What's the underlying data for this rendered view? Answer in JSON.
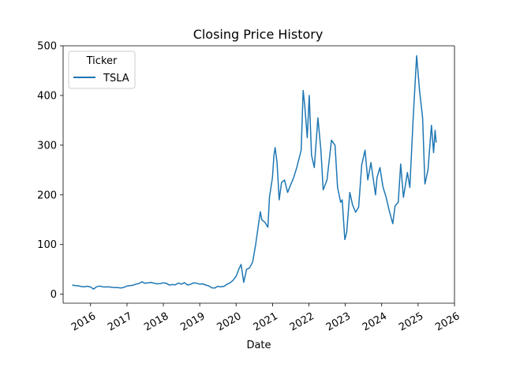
{
  "chart_data": {
    "type": "line",
    "title": "Closing Price History",
    "xlabel": "Date",
    "ylabel": "",
    "xlim": [
      "2015-04-01",
      "2026-01-01"
    ],
    "ylim": [
      -18,
      500
    ],
    "x_ticks": [
      "2016",
      "2017",
      "2018",
      "2019",
      "2020",
      "2021",
      "2022",
      "2023",
      "2024",
      "2025",
      "2026"
    ],
    "y_ticks": [
      0,
      100,
      200,
      300,
      400,
      500
    ],
    "grid": false,
    "legend": {
      "title": "Ticker",
      "location": "upper-left"
    },
    "colors": {
      "series": "#1f77b4",
      "axis": "#000000"
    },
    "series": [
      {
        "name": "TSLA",
        "points": [
          [
            "2015-07-01",
            18.5
          ],
          [
            "2015-08-01",
            17.5
          ],
          [
            "2015-09-01",
            17.0
          ],
          [
            "2015-10-01",
            15.5
          ],
          [
            "2015-11-01",
            15.0
          ],
          [
            "2015-12-01",
            16.2
          ],
          [
            "2016-01-01",
            14.5
          ],
          [
            "2016-02-01",
            10.5
          ],
          [
            "2016-03-01",
            15.0
          ],
          [
            "2016-04-01",
            16.5
          ],
          [
            "2016-05-01",
            15.0
          ],
          [
            "2016-06-01",
            14.5
          ],
          [
            "2016-07-01",
            15.0
          ],
          [
            "2016-08-01",
            14.0
          ],
          [
            "2016-09-01",
            13.5
          ],
          [
            "2016-10-01",
            13.5
          ],
          [
            "2016-11-01",
            12.5
          ],
          [
            "2016-12-01",
            14.0
          ],
          [
            "2017-01-01",
            16.5
          ],
          [
            "2017-02-01",
            17.5
          ],
          [
            "2017-03-01",
            18.0
          ],
          [
            "2017-04-01",
            20.5
          ],
          [
            "2017-05-01",
            21.5
          ],
          [
            "2017-06-01",
            25.0
          ],
          [
            "2017-07-01",
            22.0
          ],
          [
            "2017-08-01",
            23.0
          ],
          [
            "2017-09-01",
            24.0
          ],
          [
            "2017-10-01",
            22.0
          ],
          [
            "2017-11-01",
            21.0
          ],
          [
            "2017-12-01",
            21.5
          ],
          [
            "2018-01-01",
            23.0
          ],
          [
            "2018-02-01",
            22.0
          ],
          [
            "2018-03-01",
            18.5
          ],
          [
            "2018-04-01",
            19.5
          ],
          [
            "2018-05-01",
            19.0
          ],
          [
            "2018-06-01",
            22.5
          ],
          [
            "2018-07-01",
            20.5
          ],
          [
            "2018-08-01",
            23.5
          ],
          [
            "2018-09-01",
            18.5
          ],
          [
            "2018-10-01",
            20.0
          ],
          [
            "2018-11-01",
            23.0
          ],
          [
            "2018-12-01",
            22.0
          ],
          [
            "2019-01-01",
            20.5
          ],
          [
            "2019-02-01",
            21.0
          ],
          [
            "2019-03-01",
            18.5
          ],
          [
            "2019-04-01",
            17.0
          ],
          [
            "2019-05-01",
            13.0
          ],
          [
            "2019-06-01",
            12.5
          ],
          [
            "2019-07-01",
            16.0
          ],
          [
            "2019-08-01",
            15.0
          ],
          [
            "2019-09-01",
            16.0
          ],
          [
            "2019-10-01",
            20.0
          ],
          [
            "2019-11-01",
            23.0
          ],
          [
            "2019-12-01",
            28.0
          ],
          [
            "2020-01-01",
            36.0
          ],
          [
            "2020-02-01",
            52.0
          ],
          [
            "2020-02-20",
            60.0
          ],
          [
            "2020-03-18",
            24.0
          ],
          [
            "2020-04-15",
            50.0
          ],
          [
            "2020-05-15",
            53.0
          ],
          [
            "2020-06-15",
            65.0
          ],
          [
            "2020-07-15",
            100.0
          ],
          [
            "2020-08-31",
            166.0
          ],
          [
            "2020-09-15",
            150.0
          ],
          [
            "2020-10-15",
            145.0
          ],
          [
            "2020-11-15",
            135.0
          ],
          [
            "2020-12-01",
            195.0
          ],
          [
            "2020-12-31",
            235.0
          ],
          [
            "2021-01-15",
            280.0
          ],
          [
            "2021-01-27",
            295.0
          ],
          [
            "2021-02-15",
            265.0
          ],
          [
            "2021-03-08",
            190.0
          ],
          [
            "2021-04-01",
            225.0
          ],
          [
            "2021-05-01",
            230.0
          ],
          [
            "2021-06-01",
            205.0
          ],
          [
            "2021-07-01",
            220.0
          ],
          [
            "2021-08-01",
            235.0
          ],
          [
            "2021-09-01",
            255.0
          ],
          [
            "2021-10-15",
            290.0
          ],
          [
            "2021-11-04",
            410.0
          ],
          [
            "2021-11-20",
            380.0
          ],
          [
            "2021-12-15",
            315.0
          ],
          [
            "2022-01-04",
            400.0
          ],
          [
            "2022-01-27",
            280.0
          ],
          [
            "2022-02-24",
            255.0
          ],
          [
            "2022-04-01",
            355.0
          ],
          [
            "2022-05-01",
            290.0
          ],
          [
            "2022-05-24",
            210.0
          ],
          [
            "2022-07-01",
            230.0
          ],
          [
            "2022-08-15",
            310.0
          ],
          [
            "2022-09-20",
            300.0
          ],
          [
            "2022-10-15",
            215.0
          ],
          [
            "2022-11-15",
            185.0
          ],
          [
            "2022-12-01",
            190.0
          ],
          [
            "2022-12-27",
            110.0
          ],
          [
            "2023-01-15",
            125.0
          ],
          [
            "2023-02-15",
            205.0
          ],
          [
            "2023-03-15",
            180.0
          ],
          [
            "2023-04-15",
            165.0
          ],
          [
            "2023-05-15",
            175.0
          ],
          [
            "2023-06-15",
            260.0
          ],
          [
            "2023-07-18",
            290.0
          ],
          [
            "2023-08-15",
            230.0
          ],
          [
            "2023-09-15",
            265.0
          ],
          [
            "2023-10-31",
            200.0
          ],
          [
            "2023-11-15",
            235.0
          ],
          [
            "2023-12-15",
            255.0
          ],
          [
            "2024-01-15",
            215.0
          ],
          [
            "2024-02-15",
            195.0
          ],
          [
            "2024-03-15",
            170.0
          ],
          [
            "2024-04-22",
            142.0
          ],
          [
            "2024-05-15",
            178.0
          ],
          [
            "2024-06-15",
            185.0
          ],
          [
            "2024-07-10",
            262.0
          ],
          [
            "2024-08-07",
            195.0
          ],
          [
            "2024-09-15",
            245.0
          ],
          [
            "2024-10-10",
            215.0
          ],
          [
            "2024-11-11",
            350.0
          ],
          [
            "2024-12-17",
            480.0
          ],
          [
            "2025-01-15",
            410.0
          ],
          [
            "2025-02-15",
            355.0
          ],
          [
            "2025-03-10",
            222.0
          ],
          [
            "2025-04-10",
            250.0
          ],
          [
            "2025-05-15",
            340.0
          ],
          [
            "2025-06-05",
            285.0
          ],
          [
            "2025-06-20",
            330.0
          ],
          [
            "2025-07-01",
            305.0
          ]
        ]
      }
    ]
  }
}
